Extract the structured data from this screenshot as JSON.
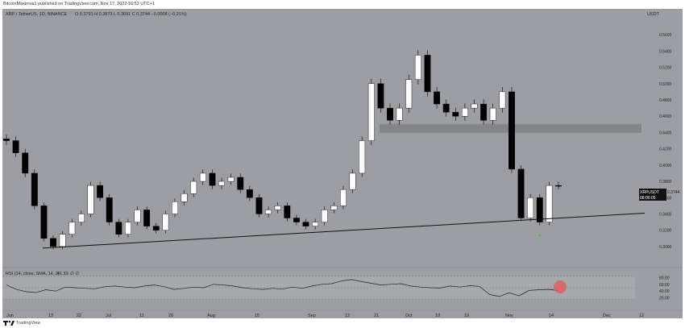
{
  "header": {
    "published_text": "BitcoinMaximus1 published on TradingView.com, Nov 17, 2022 16:53 UTC+1"
  },
  "legend": {
    "symbol": "XRP / TetherUS, 1D, BINANCE",
    "ohlc": "O 0.3791  H 0.3873  L 0.3691  C 0.3744  −0.0008 (−0.21%)"
  },
  "price_axis": {
    "currency": "USDT",
    "ticks": [
      "0.5600",
      "0.5400",
      "0.5200",
      "0.5000",
      "0.4800",
      "0.4600",
      "0.4400",
      "0.4200",
      "0.4000",
      "0.3800",
      "0.3600",
      "0.3400",
      "0.3200",
      "0.3000"
    ]
  },
  "price_tag": {
    "symbol": "XRPUSDT",
    "price": "0.3744",
    "countdown": "08:06:05"
  },
  "rsi": {
    "label": "RSI (14, close, SMA, 14, 2)",
    "value": "41.59",
    "extra": "∅  ∅",
    "ticks": [
      "80.00",
      "60.00",
      "40.00",
      "20.00"
    ]
  },
  "time_axis": {
    "labels": [
      "Jun",
      "13",
      "22",
      "Jul",
      "11",
      "20",
      "Aug",
      "15",
      "Sep",
      "12",
      "21",
      "Oct",
      "10",
      "19",
      "Nov",
      "14",
      "Dec",
      "12"
    ]
  },
  "footer": {
    "brand": "TradingView"
  },
  "colors": {
    "background": "#9c9ea3",
    "candle_up": "#ffffff",
    "candle_down": "#000000",
    "support_zone": "#7f8185",
    "rsi_band": "#a7a9ad",
    "highlight_circle": "#e05a5a",
    "marker": "#2ecc40"
  },
  "chart_data": {
    "type": "candlestick",
    "symbol": "XRP / TetherUS",
    "timeframe": "1D",
    "exchange": "BINANCE",
    "ylim": [
      0.29,
      0.575
    ],
    "support_zone": [
      0.4395,
      0.4505
    ],
    "ascending_trendline": {
      "from": [
        "Jun 10",
        0.298
      ],
      "to": [
        "Nov 23",
        0.341
      ]
    },
    "last_close": 0.3744,
    "series": [
      {
        "name": "price_path_close",
        "values": [
          0.43,
          0.415,
          0.39,
          0.35,
          0.31,
          0.3,
          0.315,
          0.33,
          0.34,
          0.375,
          0.36,
          0.33,
          0.315,
          0.33,
          0.345,
          0.325,
          0.32,
          0.34,
          0.355,
          0.365,
          0.38,
          0.39,
          0.375,
          0.38,
          0.385,
          0.37,
          0.36,
          0.34,
          0.345,
          0.35,
          0.335,
          0.33,
          0.325,
          0.33,
          0.345,
          0.35,
          0.37,
          0.39,
          0.43,
          0.5,
          0.47,
          0.455,
          0.47,
          0.505,
          0.535,
          0.49,
          0.475,
          0.465,
          0.46,
          0.47,
          0.475,
          0.455,
          0.47,
          0.49,
          0.395,
          0.335,
          0.36,
          0.33,
          0.375,
          0.3744
        ]
      },
      {
        "name": "RSI",
        "values": [
          58,
          45,
          38,
          36,
          44,
          40,
          52,
          50,
          48,
          47,
          53,
          55,
          52,
          50,
          55,
          58,
          53,
          45,
          48,
          52,
          50,
          60,
          58,
          55,
          50,
          47,
          45,
          48,
          46,
          52,
          48,
          55,
          60,
          62,
          70,
          74,
          68,
          63,
          58,
          60,
          62,
          55,
          52,
          50,
          49,
          55,
          52,
          56,
          54,
          30,
          24,
          35,
          26,
          42,
          44,
          45,
          41.59
        ]
      }
    ]
  }
}
